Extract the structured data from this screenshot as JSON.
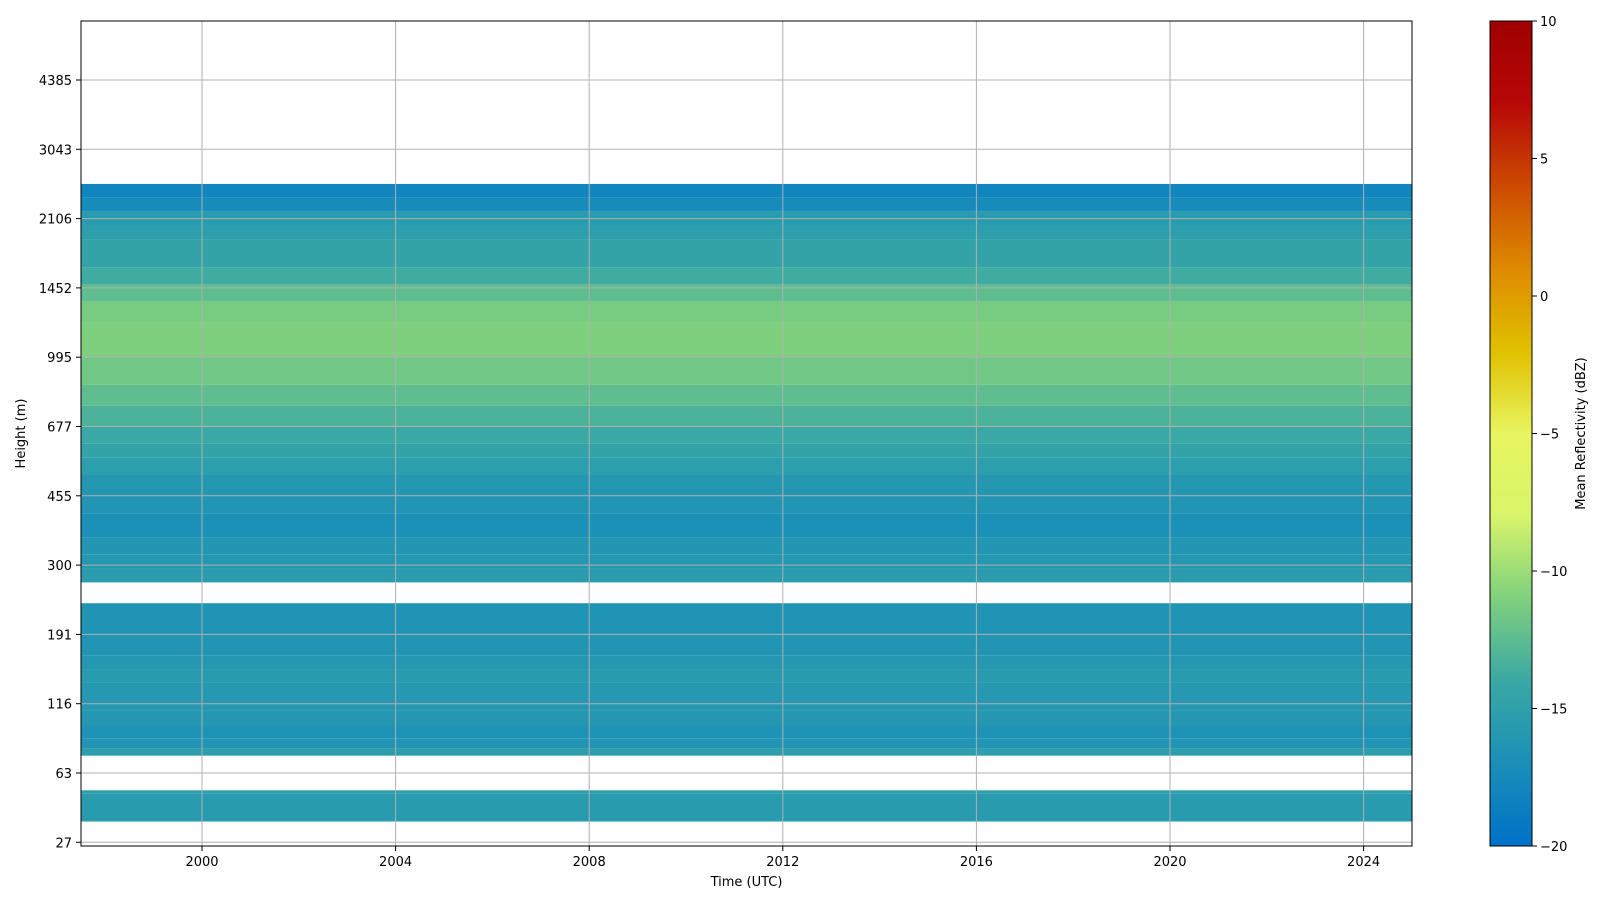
{
  "chart_data": {
    "type": "heatmap",
    "title": "",
    "xlabel": "Time (UTC)",
    "ylabel": "Height (m)",
    "xlim": [
      1997.5,
      2025.0
    ],
    "x_ticks": [
      2000,
      2004,
      2008,
      2012,
      2016,
      2020,
      2024
    ],
    "y_ticks": [
      "27",
      "63",
      "116",
      "191",
      "300",
      "455",
      "677",
      "995",
      "1452",
      "2106",
      "3043",
      "4385"
    ],
    "y_scale": "log-like height bins",
    "grid": true,
    "colorbar": {
      "label": "Mean Reflectivity (dBZ)",
      "vmin": -20,
      "vmax": 10,
      "ticks": [
        -20,
        -15,
        -10,
        -5,
        0,
        5,
        10
      ],
      "colormap": [
        "#0071c8",
        "#1a8fb8",
        "#3aa8a4",
        "#7fd07e",
        "#d8f56a",
        "#e8f560",
        "#e0c000",
        "#dd8a00",
        "#cc4a00",
        "#b80808",
        "#a00000"
      ]
    },
    "layers": [
      {
        "from_tick": 0.3,
        "to_tick": 0.7,
        "value": -15.6
      },
      {
        "from_tick": 0.7,
        "to_tick": 0.75,
        "value": -15.2
      },
      {
        "from_tick": 1.25,
        "to_tick": 1.35,
        "value": -15.2
      },
      {
        "from_tick": 1.35,
        "to_tick": 1.5,
        "value": -16.3
      },
      {
        "from_tick": 1.5,
        "to_tick": 1.7,
        "value": -16.5
      },
      {
        "from_tick": 1.7,
        "to_tick": 1.9,
        "value": -16.0
      },
      {
        "from_tick": 1.9,
        "to_tick": 2.3,
        "value": -15.9
      },
      {
        "from_tick": 2.3,
        "to_tick": 2.5,
        "value": -15.6
      },
      {
        "from_tick": 2.5,
        "to_tick": 2.7,
        "value": -16.0
      },
      {
        "from_tick": 2.7,
        "to_tick": 3.0,
        "value": -16.3
      },
      {
        "from_tick": 3.0,
        "to_tick": 3.45,
        "value": -16.4
      },
      {
        "from_tick": 3.75,
        "to_tick": 3.95,
        "value": -15.5
      },
      {
        "from_tick": 3.95,
        "to_tick": 4.15,
        "value": -16.0
      },
      {
        "from_tick": 4.15,
        "to_tick": 4.4,
        "value": -16.2
      },
      {
        "from_tick": 4.4,
        "to_tick": 4.75,
        "value": -16.8
      },
      {
        "from_tick": 4.75,
        "to_tick": 5.0,
        "value": -16.3
      },
      {
        "from_tick": 5.0,
        "to_tick": 5.3,
        "value": -16.0
      },
      {
        "from_tick": 5.3,
        "to_tick": 5.55,
        "value": -15.2
      },
      {
        "from_tick": 5.55,
        "to_tick": 5.75,
        "value": -14.6
      },
      {
        "from_tick": 5.75,
        "to_tick": 6.0,
        "value": -14.0
      },
      {
        "from_tick": 6.0,
        "to_tick": 6.3,
        "value": -13.2
      },
      {
        "from_tick": 6.3,
        "to_tick": 6.6,
        "value": -12.4
      },
      {
        "from_tick": 6.6,
        "to_tick": 7.0,
        "value": -11.6
      },
      {
        "from_tick": 7.0,
        "to_tick": 7.5,
        "value": -11.0
      },
      {
        "from_tick": 7.5,
        "to_tick": 7.8,
        "value": -11.3
      },
      {
        "from_tick": 7.8,
        "to_tick": 8.05,
        "value": -12.4
      },
      {
        "from_tick": 8.05,
        "to_tick": 8.3,
        "value": -13.8
      },
      {
        "from_tick": 8.3,
        "to_tick": 8.7,
        "value": -14.6
      },
      {
        "from_tick": 8.7,
        "to_tick": 8.9,
        "value": -15.2
      },
      {
        "from_tick": 8.9,
        "to_tick": 9.1,
        "value": -15.6
      },
      {
        "from_tick": 9.1,
        "to_tick": 9.3,
        "value": -17.4
      },
      {
        "from_tick": 9.3,
        "to_tick": 9.5,
        "value": -18.0
      }
    ]
  }
}
